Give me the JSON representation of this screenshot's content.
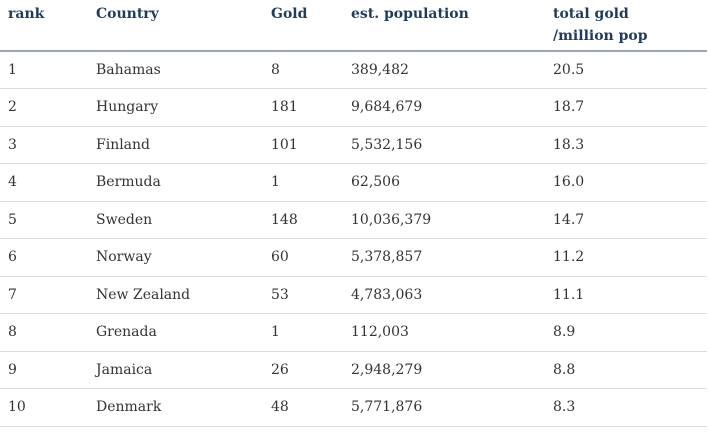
{
  "table": {
    "headers": {
      "rank": "rank",
      "country": "Country",
      "gold": "Gold",
      "population": "est. population",
      "ratio_line1": "total gold",
      "ratio_line2": "/million pop"
    },
    "rows": [
      {
        "rank": "1",
        "country": "Bahamas",
        "gold": "8",
        "population": "389,482",
        "ratio": "20.5"
      },
      {
        "rank": "2",
        "country": "Hungary",
        "gold": "181",
        "population": "9,684,679",
        "ratio": "18.7"
      },
      {
        "rank": "3",
        "country": "Finland",
        "gold": "101",
        "population": "5,532,156",
        "ratio": "18.3"
      },
      {
        "rank": "4",
        "country": "Bermuda",
        "gold": "1",
        "population": "62,506",
        "ratio": "16.0"
      },
      {
        "rank": "5",
        "country": "Sweden",
        "gold": "148",
        "population": "10,036,379",
        "ratio": "14.7"
      },
      {
        "rank": "6",
        "country": "Norway",
        "gold": "60",
        "population": "5,378,857",
        "ratio": "11.2"
      },
      {
        "rank": "7",
        "country": "New Zealand",
        "gold": "53",
        "population": "4,783,063",
        "ratio": "11.1"
      },
      {
        "rank": "8",
        "country": "Grenada",
        "gold": "1",
        "population": "112,003",
        "ratio": "8.9"
      },
      {
        "rank": "9",
        "country": "Jamaica",
        "gold": "26",
        "population": "2,948,279",
        "ratio": "8.8"
      },
      {
        "rank": "10",
        "country": "Denmark",
        "gold": "48",
        "population": "5,771,876",
        "ratio": "8.3"
      }
    ]
  },
  "colors": {
    "header_text": "#1f3c5e",
    "body_text": "#333333",
    "header_rule": "#9aa6b2",
    "row_rule": "#dcdcdc"
  }
}
